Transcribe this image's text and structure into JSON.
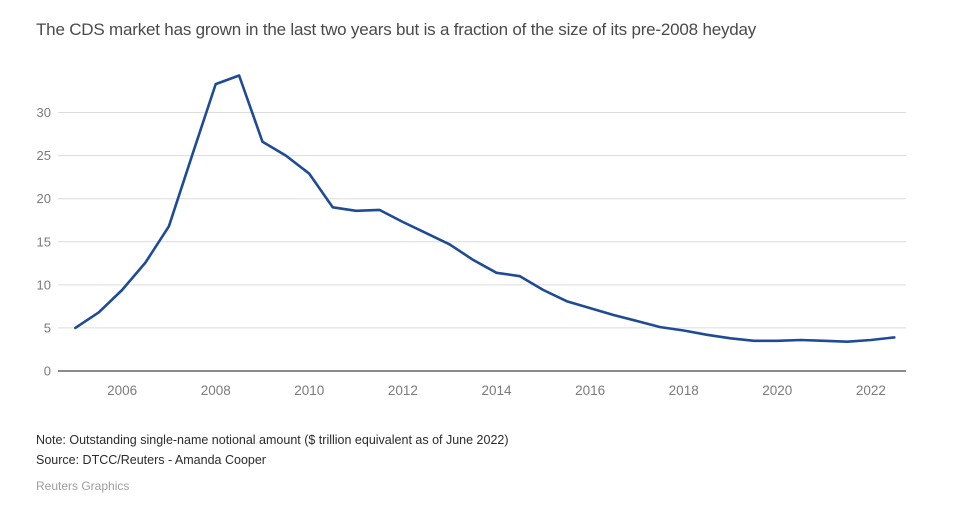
{
  "header": {
    "title": "The CDS market has grown in the last two years but is a fraction of the size of its pre-2008 heyday"
  },
  "chart_data": {
    "type": "line",
    "title": "The CDS market has grown in the last two years but is a fraction of the size of its pre-2008 heyday",
    "xlabel": "",
    "ylabel": "",
    "grid": "horizontal",
    "legend": "none",
    "xlim": [
      2004.63,
      2022.75
    ],
    "ylim": [
      0,
      36.1
    ],
    "x_ticks": [
      2006,
      2008,
      2010,
      2012,
      2014,
      2016,
      2018,
      2020,
      2022
    ],
    "x_tick_labels": [
      "2006",
      "2008",
      "2010",
      "2012",
      "2014",
      "2016",
      "2018",
      "2020",
      "2022"
    ],
    "y_ticks": [
      0,
      5,
      10,
      15,
      20,
      25,
      30
    ],
    "y_tick_labels": [
      "0",
      "5",
      "10",
      "15",
      "20",
      "25",
      "30"
    ],
    "series": [
      {
        "name": "Outstanding single-name CDS notional ($ trillion)",
        "x": [
          2005.0,
          2005.5,
          2006.0,
          2006.5,
          2007.0,
          2007.5,
          2008.0,
          2008.5,
          2009.0,
          2009.5,
          2010.0,
          2010.5,
          2011.0,
          2011.5,
          2012.0,
          2012.5,
          2013.0,
          2013.5,
          2014.0,
          2014.5,
          2015.0,
          2015.5,
          2016.0,
          2016.5,
          2017.0,
          2017.5,
          2018.0,
          2018.5,
          2019.0,
          2019.5,
          2020.0,
          2020.5,
          2021.0,
          2021.5,
          2022.0,
          2022.5
        ],
        "values": [
          5.0,
          6.8,
          9.4,
          12.6,
          16.8,
          25.1,
          33.3,
          34.3,
          26.6,
          25.0,
          22.9,
          19.0,
          18.6,
          18.7,
          17.3,
          16.0,
          14.7,
          12.9,
          11.4,
          11.0,
          9.4,
          8.1,
          7.3,
          6.5,
          5.8,
          5.1,
          4.7,
          4.2,
          3.8,
          3.5,
          3.5,
          3.6,
          3.5,
          3.4,
          3.6,
          3.9
        ]
      }
    ],
    "colors": {
      "line": "#1f4b96",
      "gridline": "#dcdcdc",
      "zero_axis": "#7a7a7a",
      "tick_text": "#7b7b7b"
    }
  },
  "footer": {
    "note": "Note: Outstanding single-name notional amount ($ trillion equivalent as of June 2022)",
    "source": "Source: DTCC/Reuters - Amanda Cooper",
    "credit": "Reuters Graphics"
  }
}
